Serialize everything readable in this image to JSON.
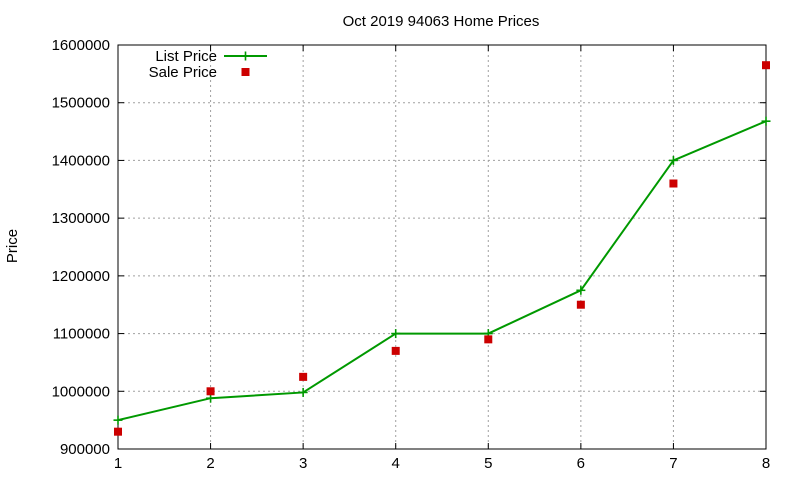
{
  "chart_data": {
    "type": "line",
    "title": "Oct 2019 94063 Home Prices",
    "xlabel": "",
    "ylabel": "Price",
    "x": [
      1,
      2,
      3,
      4,
      5,
      6,
      7,
      8
    ],
    "xlim": [
      1,
      8
    ],
    "ylim": [
      900000,
      1600000
    ],
    "xticks": [
      "1",
      "2",
      "3",
      "4",
      "5",
      "6",
      "7",
      "8"
    ],
    "yticks": [
      "900000",
      "1000000",
      "1100000",
      "1200000",
      "1300000",
      "1400000",
      "1500000",
      "1600000"
    ],
    "grid": true,
    "legend_position": "top-left",
    "series": [
      {
        "name": "List Price",
        "style": "linespoints",
        "marker": "plus",
        "color": "#009900",
        "values": [
          950000,
          988000,
          998000,
          1100000,
          1100000,
          1175000,
          1400000,
          1468000
        ]
      },
      {
        "name": "Sale Price",
        "style": "points",
        "marker": "square",
        "color": "#cc0000",
        "values": [
          930000,
          1000000,
          1025000,
          1070000,
          1090000,
          1150000,
          1360000,
          1565000
        ]
      }
    ]
  }
}
